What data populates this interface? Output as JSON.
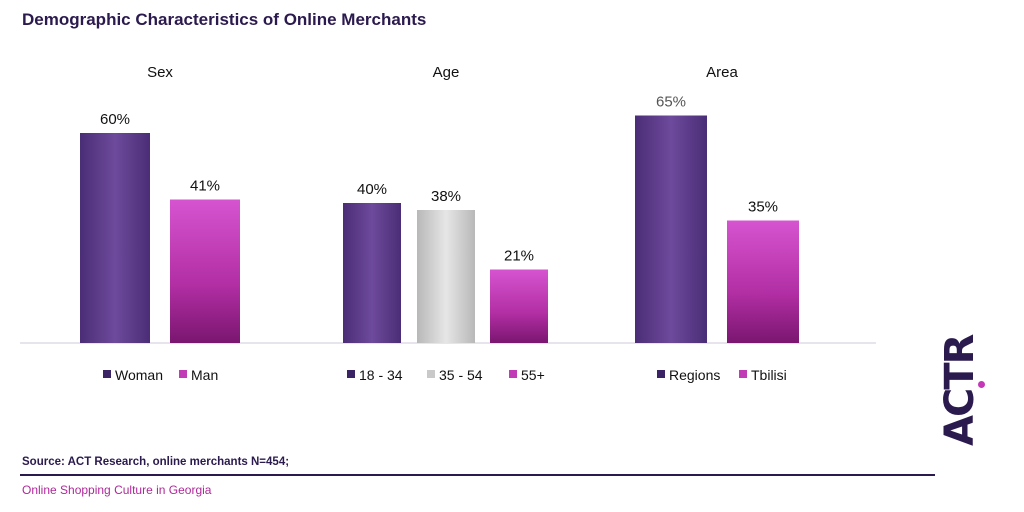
{
  "title": "Demographic Characteristics of Online Merchants",
  "source": "Source: ACT Research, online merchants N=454;",
  "footer": "Online Shopping Culture in Georgia",
  "logo_text": "ACTR",
  "colors": {
    "purple": "#5a3a8a",
    "magenta": "#c23bb6",
    "gray": "#c9c9c9",
    "title": "#2b1a4e",
    "footer": "#b0279a"
  },
  "chart_data": [
    {
      "type": "bar",
      "title": "Sex",
      "categories": [
        "Woman",
        "Man"
      ],
      "values": [
        60,
        41
      ],
      "labels": [
        "60%",
        "41%"
      ],
      "colors": [
        "purple",
        "magenta"
      ],
      "ylim": [
        0,
        70
      ]
    },
    {
      "type": "bar",
      "title": "Age",
      "categories": [
        "18 - 34",
        "35 - 54",
        "55+"
      ],
      "values": [
        40,
        38,
        21
      ],
      "labels": [
        "40%",
        "38%",
        "21%"
      ],
      "colors": [
        "purple",
        "gray",
        "magenta"
      ],
      "ylim": [
        0,
        70
      ]
    },
    {
      "type": "bar",
      "title": "Area",
      "categories": [
        "Regions",
        "Tbilisi"
      ],
      "values": [
        65,
        35
      ],
      "labels": [
        "65%",
        "35%"
      ],
      "colors": [
        "purple",
        "magenta"
      ],
      "ylim": [
        0,
        70
      ]
    }
  ]
}
